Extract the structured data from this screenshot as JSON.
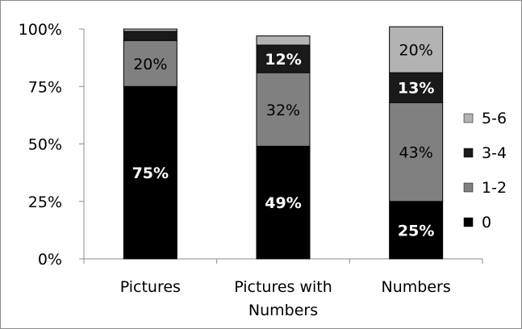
{
  "chart_data": {
    "type": "bar",
    "stacked": true,
    "percent": true,
    "categories": [
      [
        "Pictures"
      ],
      [
        "Pictures with",
        "Numbers"
      ],
      [
        "Numbers"
      ]
    ],
    "series": [
      {
        "name": "0",
        "color": "#000000",
        "values": [
          75,
          49,
          25
        ],
        "labels": [
          "75%",
          "49%",
          "25%"
        ],
        "label_color": "#ffffff",
        "label_bold": true
      },
      {
        "name": "1-2",
        "color": "#808080",
        "values": [
          20,
          32,
          43
        ],
        "labels": [
          "20%",
          "32%",
          "43%"
        ],
        "label_color": "#000000",
        "label_bold": false
      },
      {
        "name": "3-4",
        "color": "#1a1a1a",
        "values": [
          4,
          12,
          13
        ],
        "labels": [
          "",
          "12%",
          "13%"
        ],
        "label_color": "#ffffff",
        "label_bold": true
      },
      {
        "name": "5-6",
        "color": "#b3b3b3",
        "values": [
          1,
          4,
          20
        ],
        "labels": [
          "",
          "",
          "20%"
        ],
        "label_color": "#000000",
        "label_bold": false
      }
    ],
    "y_ticks": [
      "0%",
      "25%",
      "50%",
      "75%",
      "100%"
    ],
    "ylim": [
      0,
      100
    ],
    "legend_order": [
      "5-6",
      "3-4",
      "1-2",
      "0"
    ],
    "legend_position": "right",
    "grid": false,
    "title": "",
    "xlabel": "",
    "ylabel": ""
  }
}
